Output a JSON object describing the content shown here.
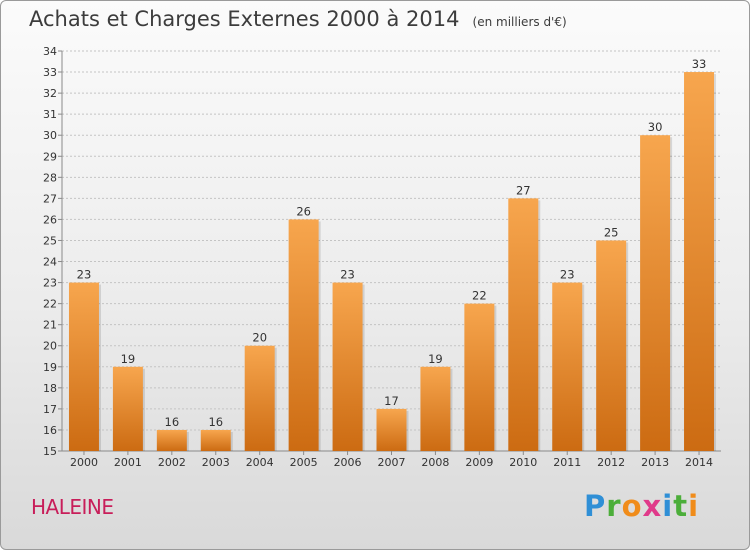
{
  "title": "Achats et Charges Externes 2000 à 2014",
  "subtitle": "(en milliers d'€)",
  "commune": "HALEINE",
  "brand": {
    "letters": [
      {
        "ch": "P",
        "color": "#2f8fd6"
      },
      {
        "ch": "r",
        "color": "#4cae3a"
      },
      {
        "ch": "o",
        "color": "#f08c1a"
      },
      {
        "ch": "x",
        "color": "#e03a8a"
      },
      {
        "ch": "i",
        "color": "#2f8fd6"
      },
      {
        "ch": "t",
        "color": "#4cae3a"
      },
      {
        "ch": "i",
        "color": "#f08c1a"
      }
    ]
  },
  "colors": {
    "bar_light": "#f7a64e",
    "bar_dark": "#cc6b12",
    "grid": "#c4c4c4",
    "axis": "#8a8a8a"
  },
  "chart_data": {
    "type": "bar",
    "title": "Achats et Charges Externes 2000 à 2014",
    "subtitle": "(en milliers d'€)",
    "xlabel": "",
    "ylabel": "",
    "categories": [
      "2000",
      "2001",
      "2002",
      "2003",
      "2004",
      "2005",
      "2006",
      "2007",
      "2008",
      "2009",
      "2010",
      "2011",
      "2012",
      "2013",
      "2014"
    ],
    "values": [
      23,
      19,
      16,
      16,
      20,
      26,
      23,
      17,
      19,
      22,
      27,
      23,
      25,
      30,
      33
    ],
    "ylim": [
      15,
      34
    ],
    "yticks": [
      15,
      16,
      17,
      18,
      19,
      20,
      21,
      22,
      23,
      24,
      25,
      26,
      27,
      28,
      29,
      30,
      31,
      32,
      33,
      34
    ],
    "grid": true,
    "legend": "none"
  }
}
